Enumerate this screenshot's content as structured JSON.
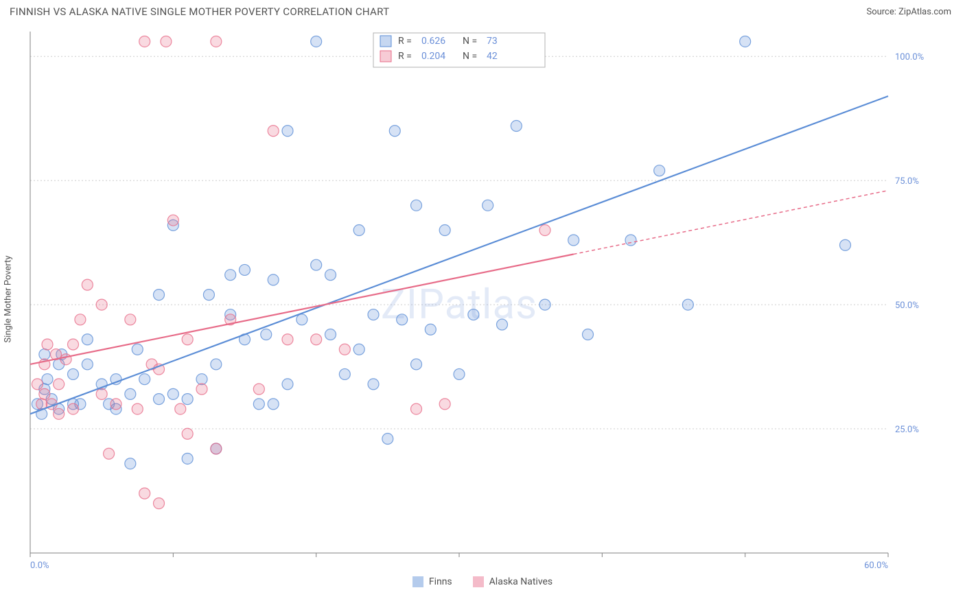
{
  "title": "FINNISH VS ALASKA NATIVE SINGLE MOTHER POVERTY CORRELATION CHART",
  "source": "Source: ZipAtlas.com",
  "ylabel": "Single Mother Poverty",
  "watermark": "ZIPatlas",
  "chart": {
    "type": "scatter",
    "xlim": [
      0,
      60
    ],
    "ylim": [
      0,
      105
    ],
    "xtick_step": 10,
    "ytick_step": 25,
    "xlabel_min": "0.0%",
    "xlabel_max": "60.0%",
    "ytick_labels": [
      "25.0%",
      "50.0%",
      "75.0%",
      "100.0%"
    ],
    "ytick_values": [
      25,
      50,
      75,
      100
    ],
    "background_color": "#ffffff",
    "grid_color": "#cccccc",
    "axis_color": "#808080",
    "marker_radius": 8,
    "marker_fill_opacity": 0.25,
    "marker_stroke_opacity": 0.8,
    "marker_stroke_width": 1.2
  },
  "series": [
    {
      "name": "Finns",
      "color": "#5b8dd6",
      "fill": "#a8c4ea",
      "R": "0.626",
      "N": "73",
      "trend": {
        "x1": 0,
        "y1": 28,
        "x2": 60,
        "y2": 92,
        "solid_until_x": 60
      },
      "points": [
        [
          0.5,
          30
        ],
        [
          0.8,
          28
        ],
        [
          1,
          33
        ],
        [
          1,
          40
        ],
        [
          1.2,
          35
        ],
        [
          1.5,
          31
        ],
        [
          2,
          38
        ],
        [
          2,
          29
        ],
        [
          2.2,
          40
        ],
        [
          3,
          30
        ],
        [
          3,
          36
        ],
        [
          3.5,
          30
        ],
        [
          4,
          43
        ],
        [
          4,
          38
        ],
        [
          5,
          34
        ],
        [
          5.5,
          30
        ],
        [
          6,
          29
        ],
        [
          6,
          35
        ],
        [
          7,
          18
        ],
        [
          7,
          32
        ],
        [
          7.5,
          41
        ],
        [
          8,
          35
        ],
        [
          9,
          52
        ],
        [
          9,
          31
        ],
        [
          10,
          32
        ],
        [
          10,
          66
        ],
        [
          11,
          31
        ],
        [
          11,
          19
        ],
        [
          12,
          35
        ],
        [
          12.5,
          52
        ],
        [
          13,
          21
        ],
        [
          13,
          38
        ],
        [
          14,
          56
        ],
        [
          14,
          48
        ],
        [
          15,
          57
        ],
        [
          15,
          43
        ],
        [
          16,
          30
        ],
        [
          16.5,
          44
        ],
        [
          17,
          30
        ],
        [
          17,
          55
        ],
        [
          18,
          34
        ],
        [
          18,
          85
        ],
        [
          19,
          47
        ],
        [
          20,
          58
        ],
        [
          20,
          103
        ],
        [
          21,
          44
        ],
        [
          21,
          56
        ],
        [
          22,
          36
        ],
        [
          23,
          41
        ],
        [
          23,
          65
        ],
        [
          24,
          34
        ],
        [
          24,
          48
        ],
        [
          25,
          23
        ],
        [
          25.5,
          85
        ],
        [
          26,
          47
        ],
        [
          27,
          38
        ],
        [
          27,
          70
        ],
        [
          28,
          45
        ],
        [
          29,
          65
        ],
        [
          30,
          36
        ],
        [
          31,
          48
        ],
        [
          32,
          70
        ],
        [
          33,
          46
        ],
        [
          34,
          86
        ],
        [
          35,
          103
        ],
        [
          36,
          50
        ],
        [
          38,
          63
        ],
        [
          39,
          44
        ],
        [
          42,
          63
        ],
        [
          44,
          77
        ],
        [
          46,
          50
        ],
        [
          50,
          103
        ],
        [
          57,
          62
        ]
      ]
    },
    {
      "name": "Alaska Natives",
      "color": "#e76b88",
      "fill": "#f3b3c2",
      "R": "0.204",
      "N": "42",
      "trend": {
        "x1": 0,
        "y1": 38,
        "x2": 60,
        "y2": 73,
        "solid_until_x": 38
      },
      "points": [
        [
          0.5,
          34
        ],
        [
          0.8,
          30
        ],
        [
          1,
          32
        ],
        [
          1,
          38
        ],
        [
          1.2,
          42
        ],
        [
          1.5,
          30
        ],
        [
          1.8,
          40
        ],
        [
          2,
          28
        ],
        [
          2,
          34
        ],
        [
          2.5,
          39
        ],
        [
          3,
          42
        ],
        [
          3,
          29
        ],
        [
          3.5,
          47
        ],
        [
          4,
          54
        ],
        [
          5,
          50
        ],
        [
          5,
          32
        ],
        [
          5.5,
          20
        ],
        [
          6,
          30
        ],
        [
          7,
          47
        ],
        [
          7.5,
          29
        ],
        [
          8,
          12
        ],
        [
          8,
          103
        ],
        [
          8.5,
          38
        ],
        [
          9,
          10
        ],
        [
          9,
          37
        ],
        [
          9.5,
          103
        ],
        [
          10,
          67
        ],
        [
          10.5,
          29
        ],
        [
          11,
          24
        ],
        [
          11,
          43
        ],
        [
          12,
          33
        ],
        [
          13,
          103
        ],
        [
          13,
          21
        ],
        [
          14,
          47
        ],
        [
          16,
          33
        ],
        [
          17,
          85
        ],
        [
          18,
          43
        ],
        [
          20,
          43
        ],
        [
          22,
          41
        ],
        [
          27,
          29
        ],
        [
          29,
          30
        ],
        [
          36,
          65
        ]
      ]
    }
  ],
  "top_legend": {
    "R_label": "R =",
    "N_label": "N ="
  },
  "bottom_legend": {
    "items": [
      "Finns",
      "Alaska Natives"
    ]
  }
}
